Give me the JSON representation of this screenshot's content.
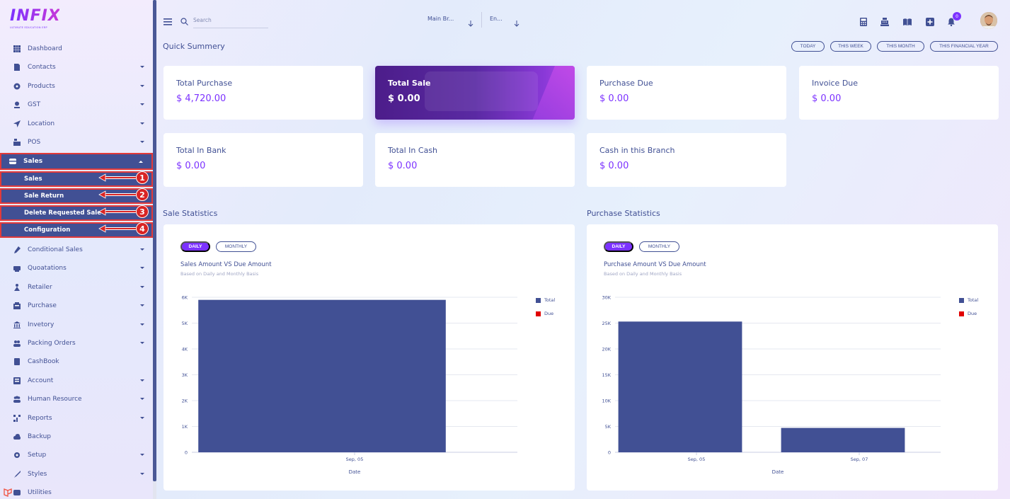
{
  "brand": {
    "name": "INFIX",
    "tagline": "ULTIMATE EDUCATION ERP"
  },
  "sidebar": {
    "items": [
      {
        "label": "Dashboard",
        "icon": "grid-icon",
        "chevron": false
      },
      {
        "label": "Contacts",
        "icon": "contacts-icon",
        "chevron": true
      },
      {
        "label": "Products",
        "icon": "products-icon",
        "chevron": true
      },
      {
        "label": "GST",
        "icon": "gst-icon",
        "chevron": true
      },
      {
        "label": "Location",
        "icon": "location-icon",
        "chevron": true
      },
      {
        "label": "POS",
        "icon": "pos-icon",
        "chevron": true
      },
      {
        "label": "Sales",
        "icon": "sales-icon",
        "chevron": true,
        "open": true
      },
      {
        "label": "Conditional Sales",
        "icon": "conditional-sales-icon",
        "chevron": true
      },
      {
        "label": "Quoatations",
        "icon": "quotations-icon",
        "chevron": true
      },
      {
        "label": "Retailer",
        "icon": "retailer-icon",
        "chevron": true
      },
      {
        "label": "Purchase",
        "icon": "purchase-icon",
        "chevron": true
      },
      {
        "label": "Invetory",
        "icon": "inventory-icon",
        "chevron": true
      },
      {
        "label": "Packing Orders",
        "icon": "packing-orders-icon",
        "chevron": true
      },
      {
        "label": "CashBook",
        "icon": "cashbook-icon",
        "chevron": false
      },
      {
        "label": "Account",
        "icon": "account-icon",
        "chevron": true
      },
      {
        "label": "Human Resource",
        "icon": "human-resource-icon",
        "chevron": true
      },
      {
        "label": "Reports",
        "icon": "reports-icon",
        "chevron": true
      },
      {
        "label": "Backup",
        "icon": "backup-icon",
        "chevron": false
      },
      {
        "label": "Setup",
        "icon": "setup-icon",
        "chevron": true
      },
      {
        "label": "Styles",
        "icon": "styles-icon",
        "chevron": true
      },
      {
        "label": "Utilities",
        "icon": "utilities-icon",
        "chevron": false
      }
    ],
    "sales_submenu": [
      {
        "label": "Sales",
        "callout": "1"
      },
      {
        "label": "Sale Return",
        "callout": "2"
      },
      {
        "label": "Delete Requested Sale",
        "callout": "3"
      },
      {
        "label": "Configuration",
        "callout": "4"
      }
    ]
  },
  "topbar": {
    "search_placeholder": "Search",
    "branch_select": "Main Br...",
    "language_select": "En...",
    "icons": [
      "calculator-icon",
      "cash-register-icon",
      "book-icon",
      "plus-square-icon",
      "bell-icon"
    ],
    "notification_count": "0"
  },
  "quick_summary": {
    "title": "Quick Summery",
    "ranges": [
      "TODAY",
      "THIS WEEK",
      "THIS MONTH",
      "THIS FINANCIAL YEAR"
    ],
    "cards": [
      {
        "label": "Total Purchase",
        "value": "$ 4,720.00"
      },
      {
        "label": "Total Sale",
        "value": "$ 0.00",
        "active": true
      },
      {
        "label": "Purchase Due",
        "value": "$ 0.00"
      },
      {
        "label": "Invoice Due",
        "value": "$ 0.00"
      },
      {
        "label": "Total In Bank",
        "value": "$ 0.00"
      },
      {
        "label": "Total In Cash",
        "value": "$ 0.00"
      },
      {
        "label": "Cash in this Branch",
        "value": "$ 0.00"
      }
    ]
  },
  "sale_statistics": {
    "section_title": "Sale Statistics",
    "toggle": [
      "DAILY",
      "MONTHLY"
    ],
    "title": "Sales Amount VS Due Amount",
    "subtitle": "Based on Daily and Monthly Basis"
  },
  "purchase_statistics": {
    "section_title": "Purchase Statistics",
    "toggle": [
      "DAILY",
      "MONTHLY"
    ],
    "title": "Purchase Amount VS Due Amount",
    "subtitle": "Based on Daily and Monthly Basis"
  },
  "colors": {
    "primary": "#415094",
    "accent": "#7c32ff",
    "due": "#e10000",
    "callout": "#d92424"
  },
  "chart_data": [
    {
      "type": "bar",
      "categories": [
        "Sep, 05"
      ],
      "series": [
        {
          "name": "Total",
          "values": [
            5900
          ],
          "color": "#415094"
        },
        {
          "name": "Due",
          "values": [
            0
          ],
          "color": "#e10000"
        }
      ],
      "xlabel": "Date",
      "ylabel": "",
      "ylim": [
        0,
        6000
      ],
      "yticks": [
        "0",
        "1K",
        "2K",
        "3K",
        "4K",
        "5K",
        "6K"
      ],
      "grid": true,
      "legend": "right"
    },
    {
      "type": "bar",
      "categories": [
        "Sep, 05",
        "Sep, 07"
      ],
      "series": [
        {
          "name": "Total",
          "values": [
            25300,
            4720
          ],
          "color": "#415094"
        },
        {
          "name": "Due",
          "values": [
            0,
            0
          ],
          "color": "#e10000"
        }
      ],
      "xlabel": "Date",
      "ylabel": "",
      "ylim": [
        0,
        30000
      ],
      "yticks": [
        "0",
        "5K",
        "10K",
        "15K",
        "20K",
        "25K",
        "30K"
      ],
      "grid": true,
      "legend": "right"
    }
  ]
}
